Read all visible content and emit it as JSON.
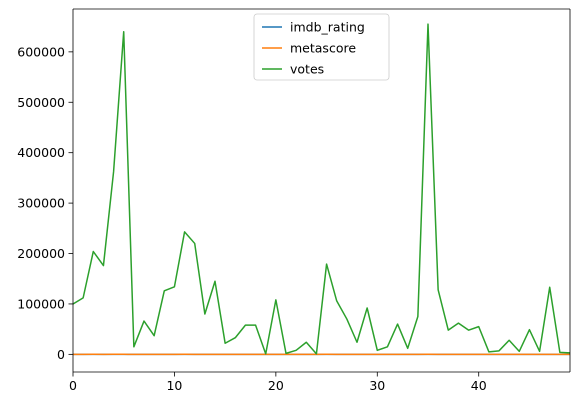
{
  "chart_data": {
    "type": "line",
    "title": "",
    "xlabel": "",
    "ylabel": "",
    "xlim": [
      0,
      49
    ],
    "ylim": [
      -35000,
      685000
    ],
    "xticks": [
      0,
      10,
      20,
      30,
      40
    ],
    "yticks": [
      0,
      100000,
      200000,
      300000,
      400000,
      500000,
      600000
    ],
    "grid": false,
    "legend_position": "upper-center",
    "x": [
      0,
      1,
      2,
      3,
      4,
      5,
      6,
      7,
      8,
      9,
      10,
      11,
      12,
      13,
      14,
      15,
      16,
      17,
      18,
      19,
      20,
      21,
      22,
      23,
      24,
      25,
      26,
      27,
      28,
      29,
      30,
      31,
      32,
      33,
      34,
      35,
      36,
      37,
      38,
      39,
      40,
      41,
      42,
      43,
      44,
      45,
      46,
      47,
      48,
      49
    ],
    "series": [
      {
        "name": "imdb_rating",
        "color": "#1f77b4",
        "values": [
          7.5,
          7.2,
          7.8,
          7.6,
          8.0,
          8.6,
          6.8,
          7.0,
          6.9,
          7.4,
          7.3,
          7.9,
          7.7,
          7.1,
          7.6,
          6.9,
          7.0,
          7.2,
          7.3,
          6.5,
          7.4,
          6.6,
          6.7,
          7.0,
          6.4,
          7.8,
          7.5,
          7.2,
          6.9,
          7.4,
          6.5,
          6.7,
          7.1,
          6.8,
          7.3,
          8.5,
          7.6,
          7.0,
          7.1,
          6.9,
          7.2,
          6.6,
          6.5,
          6.8,
          6.4,
          7.0,
          6.6,
          7.5,
          6.3,
          6.2
        ]
      },
      {
        "name": "metascore",
        "color": "#ff7f0e",
        "values": [
          70,
          65,
          78,
          74,
          80,
          88,
          60,
          66,
          62,
          72,
          70,
          82,
          76,
          64,
          75,
          58,
          61,
          67,
          69,
          50,
          72,
          55,
          57,
          63,
          48,
          79,
          71,
          68,
          60,
          73,
          52,
          56,
          66,
          59,
          70,
          86,
          74,
          62,
          65,
          60,
          68,
          54,
          51,
          58,
          47,
          63,
          55,
          72,
          45,
          44
        ]
      },
      {
        "name": "votes",
        "color": "#2ca02c",
        "values": [
          100000,
          112000,
          204000,
          176000,
          362000,
          640000,
          15000,
          66000,
          37000,
          126000,
          134000,
          243000,
          220000,
          80000,
          145000,
          22000,
          33000,
          58000,
          58000,
          1000,
          108000,
          2000,
          8000,
          24000,
          1000,
          179000,
          106000,
          70000,
          24000,
          92000,
          8000,
          15000,
          60000,
          12000,
          75000,
          655000,
          128000,
          48000,
          62000,
          48000,
          55000,
          5000,
          7000,
          28000,
          6000,
          49000,
          6000,
          133000,
          4000,
          3000
        ]
      }
    ]
  }
}
